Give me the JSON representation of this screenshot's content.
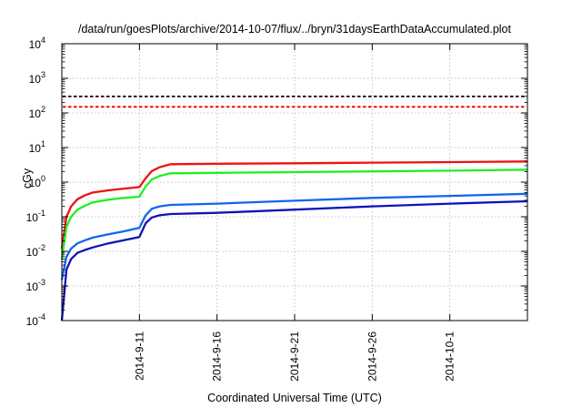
{
  "chart_data": {
    "type": "line",
    "title": "/data/run/goesPlots/archive/2014-10-07/flux/../bryn/31daysEarthDataAccumulated.plot",
    "xlabel": "Coordinated Universal Time (UTC)",
    "ylabel": "cGy",
    "yscale": "log",
    "ylim": [
      0.0001,
      10000
    ],
    "xlim": [
      "2014-09-06",
      "2014-10-06"
    ],
    "grid": true,
    "x_ticks": [
      "2014-9-11",
      "2014-9-16",
      "2014-9-21",
      "2014-9-26",
      "2014-10-1"
    ],
    "y_ticks": [
      {
        "base": "10",
        "exp": "-4"
      },
      {
        "base": "10",
        "exp": "-3"
      },
      {
        "base": "10",
        "exp": "-2"
      },
      {
        "base": "10",
        "exp": "-1"
      },
      {
        "base": "10",
        "exp": "0"
      },
      {
        "base": "10",
        "exp": "1"
      },
      {
        "base": "10",
        "exp": "2"
      },
      {
        "base": "10",
        "exp": "3"
      },
      {
        "base": "10",
        "exp": "4"
      }
    ],
    "reference_lines": [
      {
        "y": 300,
        "color": "#000000",
        "style": "dashed"
      },
      {
        "y": 150,
        "color": "#ee0000",
        "style": "dashed"
      }
    ],
    "series": [
      {
        "color": "#ee1111",
        "points": [
          [
            "2014-09-06",
            0.012
          ],
          [
            "2014-09-06.3",
            0.1
          ],
          [
            "2014-09-06.6",
            0.2
          ],
          [
            "2014-09-07",
            0.32
          ],
          [
            "2014-09-07.5",
            0.42
          ],
          [
            "2014-09-08",
            0.5
          ],
          [
            "2014-09-09",
            0.58
          ],
          [
            "2014-09-10",
            0.65
          ],
          [
            "2014-09-11",
            0.72
          ],
          [
            "2014-09-11.4",
            1.3
          ],
          [
            "2014-09-11.8",
            2.1
          ],
          [
            "2014-09-12.3",
            2.7
          ],
          [
            "2014-09-13",
            3.3
          ],
          [
            "2014-09-16",
            3.4
          ],
          [
            "2014-09-21",
            3.5
          ],
          [
            "2014-09-26",
            3.65
          ],
          [
            "2014-10-01",
            3.8
          ],
          [
            "2014-10-06",
            3.95
          ]
        ]
      },
      {
        "color": "#22ee22",
        "points": [
          [
            "2014-09-06",
            0.006
          ],
          [
            "2014-09-06.3",
            0.05
          ],
          [
            "2014-09-06.6",
            0.1
          ],
          [
            "2014-09-07",
            0.16
          ],
          [
            "2014-09-07.5",
            0.21
          ],
          [
            "2014-09-08",
            0.26
          ],
          [
            "2014-09-09",
            0.31
          ],
          [
            "2014-09-10",
            0.35
          ],
          [
            "2014-09-11",
            0.38
          ],
          [
            "2014-09-11.4",
            0.75
          ],
          [
            "2014-09-11.8",
            1.2
          ],
          [
            "2014-09-12.3",
            1.5
          ],
          [
            "2014-09-13",
            1.8
          ],
          [
            "2014-09-16",
            1.85
          ],
          [
            "2014-09-21",
            1.95
          ],
          [
            "2014-09-26",
            2.05
          ],
          [
            "2014-10-01",
            2.15
          ],
          [
            "2014-10-06",
            2.3
          ]
        ]
      },
      {
        "color": "#1166ee",
        "points": [
          [
            "2014-09-06",
            0.0015
          ],
          [
            "2014-09-06.3",
            0.007
          ],
          [
            "2014-09-06.6",
            0.012
          ],
          [
            "2014-09-07",
            0.017
          ],
          [
            "2014-09-07.5",
            0.021
          ],
          [
            "2014-09-08",
            0.025
          ],
          [
            "2014-09-09",
            0.031
          ],
          [
            "2014-09-10",
            0.038
          ],
          [
            "2014-09-11",
            0.048
          ],
          [
            "2014-09-11.4",
            0.11
          ],
          [
            "2014-09-11.8",
            0.17
          ],
          [
            "2014-09-12.3",
            0.2
          ],
          [
            "2014-09-13",
            0.22
          ],
          [
            "2014-09-16",
            0.24
          ],
          [
            "2014-09-21",
            0.29
          ],
          [
            "2014-09-26",
            0.35
          ],
          [
            "2014-10-01",
            0.4
          ],
          [
            "2014-10-06",
            0.46
          ]
        ]
      },
      {
        "color": "#1111bb",
        "points": [
          [
            "2014-09-06",
            0.0001
          ],
          [
            "2014-09-06.3",
            0.003
          ],
          [
            "2014-09-06.6",
            0.006
          ],
          [
            "2014-09-07",
            0.009
          ],
          [
            "2014-09-07.5",
            0.011
          ],
          [
            "2014-09-08",
            0.013
          ],
          [
            "2014-09-09",
            0.017
          ],
          [
            "2014-09-10",
            0.021
          ],
          [
            "2014-09-11",
            0.026
          ],
          [
            "2014-09-11.4",
            0.065
          ],
          [
            "2014-09-11.8",
            0.095
          ],
          [
            "2014-09-12.3",
            0.11
          ],
          [
            "2014-09-13",
            0.12
          ],
          [
            "2014-09-16",
            0.13
          ],
          [
            "2014-09-21",
            0.16
          ],
          [
            "2014-09-26",
            0.2
          ],
          [
            "2014-10-01",
            0.24
          ],
          [
            "2014-10-06",
            0.28
          ]
        ]
      }
    ]
  }
}
